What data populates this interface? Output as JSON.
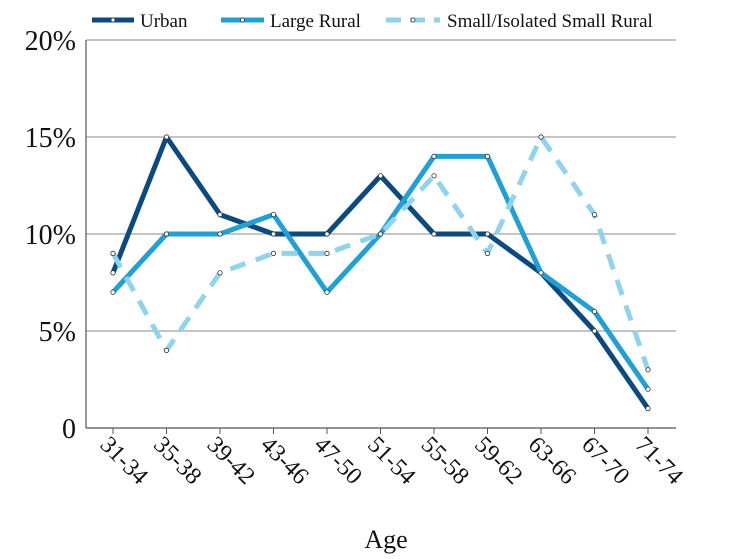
{
  "chart_data": {
    "type": "line",
    "title": "",
    "xlabel": "Age",
    "ylabel": "",
    "categories": [
      "31-34",
      "35-38",
      "39-42",
      "43-46",
      "47-50",
      "51-54",
      "55-58",
      "59-62",
      "63-66",
      "67-70",
      "71-74"
    ],
    "ylim": [
      0,
      20
    ],
    "yticks": [
      {
        "value": 0,
        "label": "0"
      },
      {
        "value": 5,
        "label": "5%"
      },
      {
        "value": 10,
        "label": "10%"
      },
      {
        "value": 15,
        "label": "15%"
      },
      {
        "value": 20,
        "label": "20%"
      }
    ],
    "grid": true,
    "legend": "top",
    "series": [
      {
        "name": "Urban",
        "color": "#0b4a80",
        "dashed": false,
        "values": [
          8,
          15,
          11,
          10,
          10,
          13,
          10,
          10,
          8,
          5,
          1
        ]
      },
      {
        "name": "Large Rural",
        "color": "#1fa0d6",
        "dashed": false,
        "values": [
          7,
          10,
          10,
          11,
          7,
          10,
          14,
          14,
          8,
          6,
          2
        ]
      },
      {
        "name": "Small/Isolated Small Rural",
        "color": "#8fd3ec",
        "dashed": true,
        "values": [
          9,
          4,
          8,
          9,
          9,
          10,
          13,
          9,
          15,
          11,
          3
        ]
      }
    ]
  }
}
